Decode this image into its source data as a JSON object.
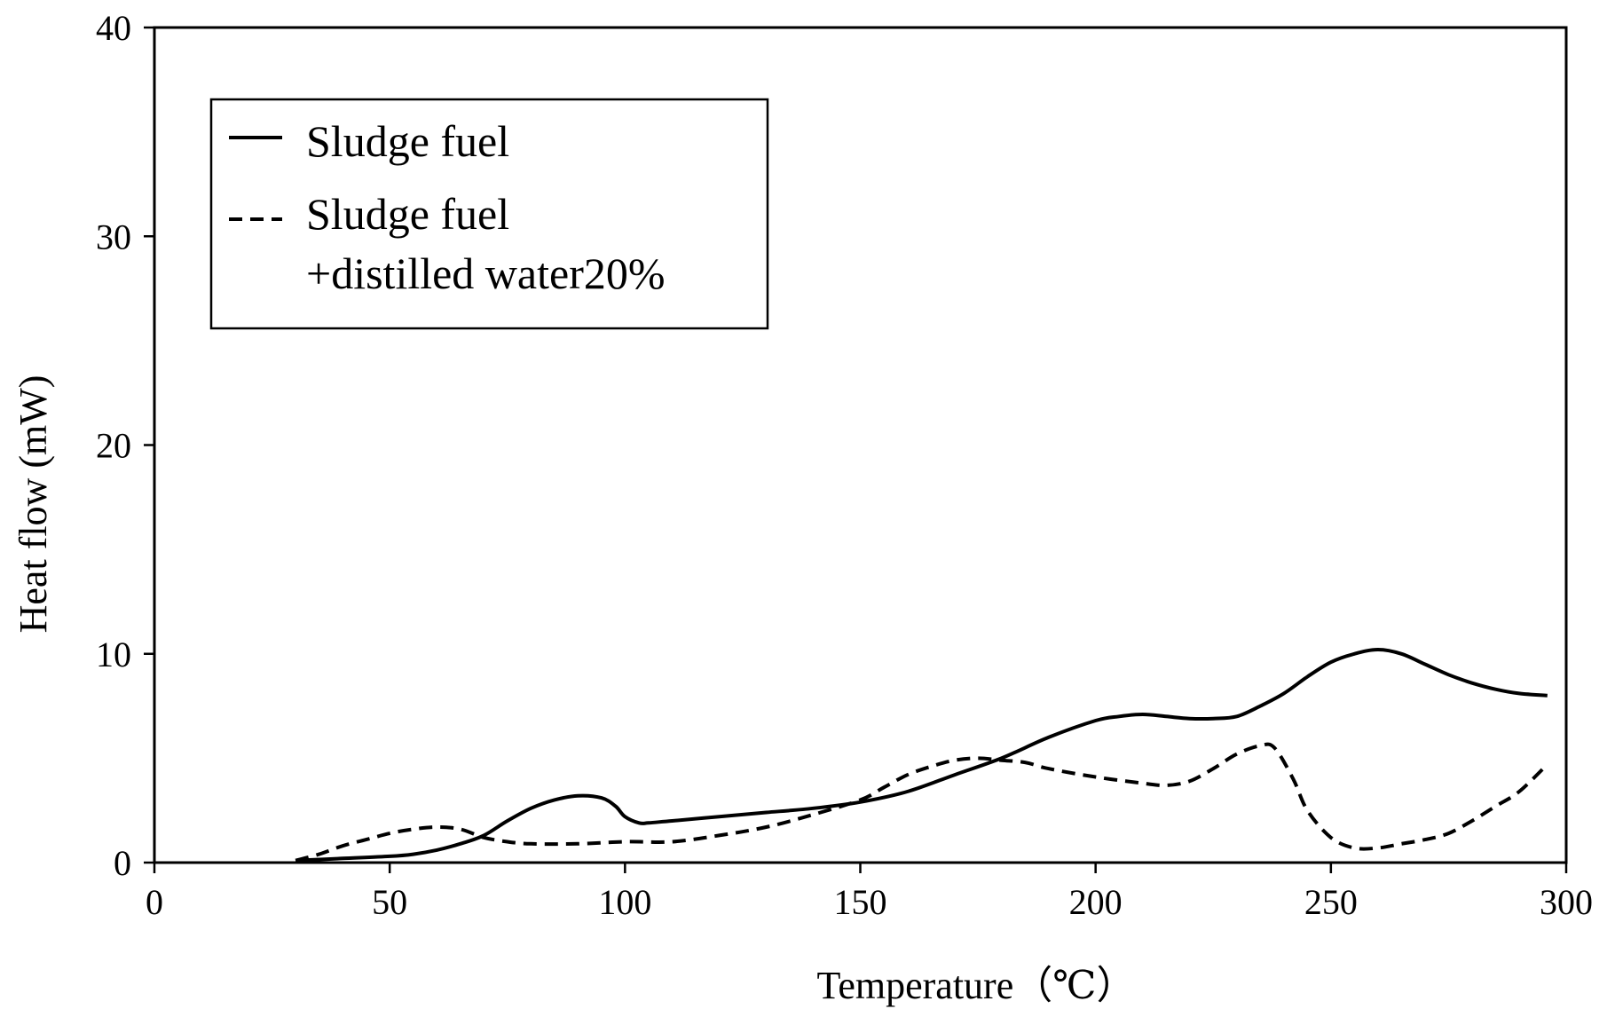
{
  "chart_data": {
    "type": "line",
    "title": "",
    "xlabel": "Temperature（℃）",
    "ylabel": "Heat flow (mW)",
    "xlim": [
      0,
      300
    ],
    "ylim": [
      0,
      40
    ],
    "x_ticks": [
      0,
      50,
      100,
      150,
      200,
      250,
      300
    ],
    "y_ticks": [
      0,
      10,
      20,
      30,
      40
    ],
    "grid": false,
    "legend_position": "top-left",
    "series": [
      {
        "name": "Sludge fuel",
        "style": "solid",
        "x": [
          30,
          40,
          50,
          55,
          60,
          65,
          70,
          75,
          80,
          85,
          90,
          95,
          98,
          100,
          103,
          105,
          110,
          120,
          130,
          140,
          150,
          160,
          170,
          180,
          190,
          200,
          205,
          210,
          215,
          220,
          225,
          230,
          235,
          240,
          245,
          250,
          255,
          260,
          265,
          270,
          275,
          280,
          285,
          290,
          296
        ],
        "y": [
          0.1,
          0.2,
          0.3,
          0.4,
          0.6,
          0.9,
          1.3,
          2.0,
          2.6,
          3.0,
          3.2,
          3.1,
          2.7,
          2.2,
          1.9,
          1.9,
          2.0,
          2.2,
          2.4,
          2.6,
          2.9,
          3.4,
          4.2,
          5.0,
          6.0,
          6.8,
          7.0,
          7.1,
          7.0,
          6.9,
          6.9,
          7.0,
          7.5,
          8.1,
          8.9,
          9.6,
          10.0,
          10.2,
          10.0,
          9.5,
          9.0,
          8.6,
          8.3,
          8.1,
          8.0
        ]
      },
      {
        "name": "Sludge fuel\n+distilled water20%",
        "legend_lines": [
          "Sludge fuel",
          "+distilled water20%"
        ],
        "style": "dashed",
        "x": [
          30,
          35,
          40,
          45,
          50,
          55,
          60,
          65,
          70,
          75,
          80,
          90,
          100,
          110,
          120,
          130,
          140,
          150,
          155,
          160,
          165,
          170,
          175,
          180,
          185,
          190,
          200,
          210,
          215,
          220,
          225,
          230,
          235,
          238,
          242,
          245,
          250,
          255,
          260,
          265,
          270,
          275,
          280,
          285,
          290,
          296
        ],
        "y": [
          0.1,
          0.4,
          0.8,
          1.1,
          1.4,
          1.6,
          1.7,
          1.6,
          1.2,
          1.0,
          0.9,
          0.9,
          1.0,
          1.0,
          1.3,
          1.7,
          2.3,
          3.0,
          3.6,
          4.2,
          4.6,
          4.9,
          5.0,
          4.9,
          4.8,
          4.5,
          4.1,
          3.8,
          3.7,
          3.9,
          4.5,
          5.2,
          5.6,
          5.5,
          4.0,
          2.5,
          1.2,
          0.7,
          0.7,
          0.9,
          1.1,
          1.4,
          2.0,
          2.7,
          3.4,
          4.7
        ]
      }
    ]
  }
}
